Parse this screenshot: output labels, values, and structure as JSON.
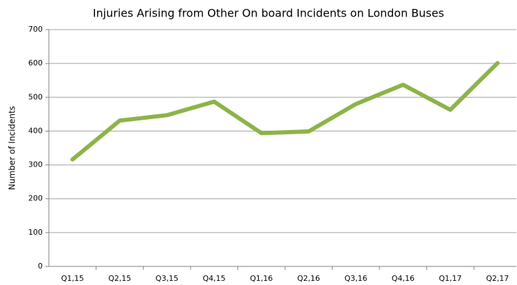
{
  "chart_data": {
    "type": "line",
    "title": "Injuries Arising from Other On board Incidents on London Buses",
    "y_label": "Number of Incidents",
    "categories": [
      "Q1,15",
      "Q2,15",
      "Q3,15",
      "Q4,15",
      "Q1,16",
      "Q2,16",
      "Q3,16",
      "Q4,16",
      "Q1,17",
      "Q2,17"
    ],
    "series": [
      {
        "name": "Injuries",
        "color": "#8db34a",
        "values": [
          316,
          431,
          447,
          487,
          394,
          399,
          480,
          537,
          463,
          601
        ]
      }
    ],
    "ylim": [
      0,
      700
    ],
    "yticks": [
      0,
      100,
      200,
      300,
      400,
      500,
      600,
      700
    ],
    "grid": true
  }
}
